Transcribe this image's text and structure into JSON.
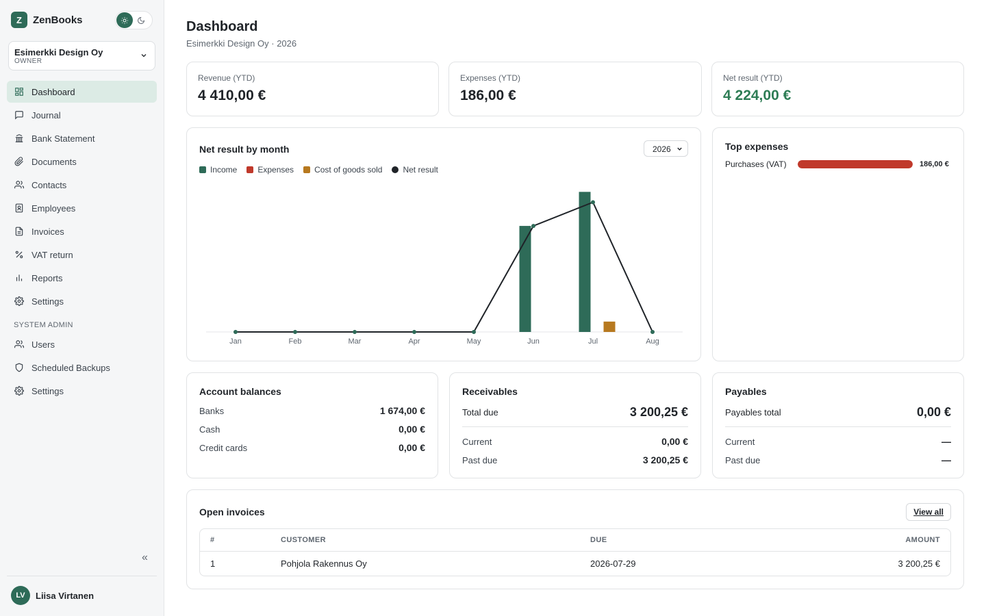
{
  "brand": {
    "logo_letter": "Z",
    "name": "ZenBooks"
  },
  "theme_toggle": {
    "light_icon": "sun-icon",
    "dark_icon": "moon-icon",
    "active": "light"
  },
  "org": {
    "name": "Esimerkki Design Oy",
    "role": "OWNER"
  },
  "nav": [
    {
      "label": "Dashboard",
      "icon": "dashboard-icon",
      "active": true
    },
    {
      "label": "Journal",
      "icon": "message-square-icon"
    },
    {
      "label": "Bank Statement",
      "icon": "bank-icon"
    },
    {
      "label": "Documents",
      "icon": "paperclip-icon"
    },
    {
      "label": "Contacts",
      "icon": "users-icon"
    },
    {
      "label": "Employees",
      "icon": "id-badge-icon"
    },
    {
      "label": "Invoices",
      "icon": "file-text-icon"
    },
    {
      "label": "VAT return",
      "icon": "percent-icon"
    },
    {
      "label": "Reports",
      "icon": "bar-chart-icon"
    },
    {
      "label": "Settings",
      "icon": "gear-icon"
    }
  ],
  "nav_section_label": "SYSTEM ADMIN",
  "admin_nav": [
    {
      "label": "Users",
      "icon": "users-icon"
    },
    {
      "label": "Scheduled Backups",
      "icon": "shield-icon"
    },
    {
      "label": "Settings",
      "icon": "gear-icon"
    }
  ],
  "collapse_label": "«",
  "user": {
    "initials": "LV",
    "name": "Liisa Virtanen"
  },
  "page": {
    "title": "Dashboard",
    "subtitle": "Esimerkki Design Oy · 2026"
  },
  "kpis": [
    {
      "label": "Revenue (YTD)",
      "value": "4 410,00 €"
    },
    {
      "label": "Expenses (YTD)",
      "value": "186,00 €"
    },
    {
      "label": "Net result (YTD)",
      "value": "4 224,00 €"
    }
  ],
  "colors": {
    "income": "#2e6b58",
    "expenses": "#c0392b",
    "cogs": "#b7791f",
    "net_result": "#1f2328",
    "accent": "#2e6b58",
    "positive": "#2e7d55"
  },
  "net_chart": {
    "title": "Net result by month",
    "year_select": "2026",
    "legend": {
      "income": "Income",
      "expenses": "Expenses",
      "cogs": "Cost of goods sold",
      "net": "Net result"
    }
  },
  "chart_data": {
    "type": "bar",
    "title": "Net result by month",
    "categories": [
      "Jan",
      "Feb",
      "Mar",
      "Apr",
      "May",
      "Jun",
      "Jul",
      "Aug"
    ],
    "series": [
      {
        "name": "Income",
        "type": "bar",
        "values": [
          0,
          0,
          0,
          0,
          0,
          1900,
          2510,
          0
        ]
      },
      {
        "name": "Expenses",
        "type": "bar",
        "values": [
          0,
          0,
          0,
          0,
          0,
          0,
          0,
          0
        ]
      },
      {
        "name": "Cost of goods sold",
        "type": "bar",
        "values": [
          0,
          0,
          0,
          0,
          0,
          0,
          186,
          0
        ]
      },
      {
        "name": "Net result",
        "type": "line",
        "values": [
          0,
          0,
          0,
          0,
          0,
          1900,
          2324,
          0
        ]
      }
    ],
    "ylim": [
      0,
      2600
    ],
    "grid": false,
    "legend_position": "top-left"
  },
  "top_expenses": {
    "title": "Top expenses",
    "items": [
      {
        "label": "Purchases (VAT)",
        "value": "186,00 €",
        "share": 1.0
      }
    ]
  },
  "account_balances": {
    "title": "Account balances",
    "rows": [
      {
        "label": "Banks",
        "value": "1 674,00 €"
      },
      {
        "label": "Cash",
        "value": "0,00 €"
      },
      {
        "label": "Credit cards",
        "value": "0,00 €"
      }
    ]
  },
  "receivables": {
    "title": "Receivables",
    "total_label": "Total due",
    "total_value": "3 200,25 €",
    "current_label": "Current",
    "current_value": "0,00 €",
    "past_due_label": "Past due",
    "past_due_value": "3 200,25 €"
  },
  "payables": {
    "title": "Payables",
    "total_label": "Payables total",
    "total_value": "0,00 €",
    "current_label": "Current",
    "current_value": "—",
    "past_due_label": "Past due",
    "past_due_value": "—"
  },
  "open_invoices": {
    "title": "Open invoices",
    "view_all": "View all",
    "columns": [
      "#",
      "CUSTOMER",
      "DUE",
      "AMOUNT"
    ],
    "rows": [
      {
        "num": "1",
        "customer": "Pohjola Rakennus Oy",
        "due": "2026-07-29",
        "amount": "3 200,25 €"
      }
    ]
  }
}
